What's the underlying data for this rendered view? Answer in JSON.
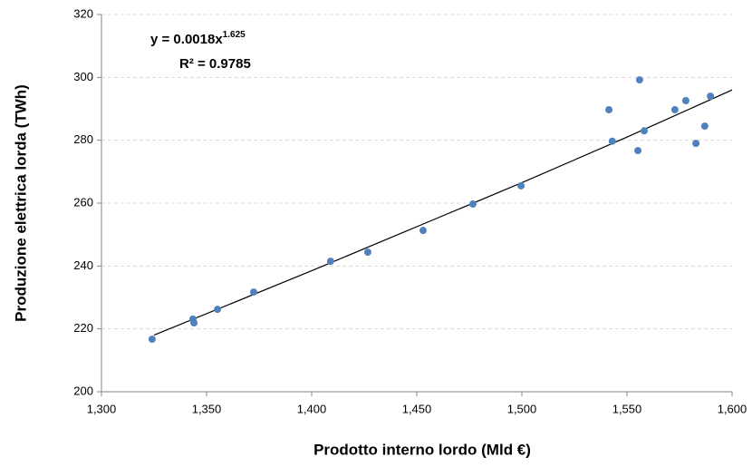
{
  "chart_data": {
    "type": "scatter",
    "x_label": "Prodotto interno lordo (Mld €)",
    "y_label": "Produzione elettrica lorda (TWh)",
    "color": "#4f81bd",
    "x": [
      1324.1,
      1343.5,
      1344,
      1355.2,
      1372.4,
      1409,
      1426.7,
      1453,
      1476.7,
      1499.6,
      1541.4,
      1543,
      1555.2,
      1556,
      1558.2,
      1572.8,
      1578,
      1582.8,
      1587,
      1589.7
    ],
    "values": [
      216.7,
      223.1,
      221.9,
      226.2,
      231.7,
      241.5,
      244.4,
      251.3,
      259.7,
      265.5,
      289.7,
      279.7,
      276.7,
      299.2,
      283,
      289.7,
      292.6,
      279,
      284.5,
      294
    ],
    "trendline": {
      "x": [
        1325,
        1400,
        1450,
        1500,
        1550,
        1600
      ],
      "values": [
        218,
        238.5,
        252.5,
        266.5,
        281,
        296
      ],
      "color": "#000000"
    },
    "annotation": {
      "equation": "y = 0.0018x",
      "exponent": "1.625",
      "r2": "R² = 0.9785"
    },
    "xlim": [
      1300,
      1600
    ],
    "xticks": [
      {
        "value": 1300,
        "label": "1,300"
      },
      {
        "value": 1350,
        "label": "1,350"
      },
      {
        "value": 1400,
        "label": "1,400"
      },
      {
        "value": 1450,
        "label": "1,450"
      },
      {
        "value": 1500,
        "label": "1,500"
      },
      {
        "value": 1550,
        "label": "1,550"
      },
      {
        "value": 1600,
        "label": "1,600"
      }
    ],
    "ylim": [
      200,
      320
    ],
    "yticks": [
      200,
      220,
      240,
      260,
      280,
      300,
      320
    ],
    "grid": true
  }
}
